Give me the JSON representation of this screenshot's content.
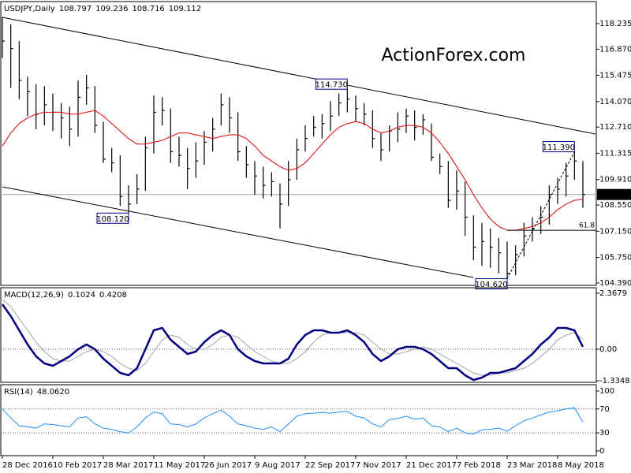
{
  "chart_data": [
    {
      "type": "ohlc",
      "title": "USDJPY,Daily",
      "readout": [
        108.797,
        109.236,
        108.716,
        109.112
      ],
      "watermark": "ActionForex.com",
      "color": "#000000",
      "ylim": [
        104.26,
        119.41
      ],
      "yticks": [
        118.235,
        {
          "value": 116.87,
          "label": "116.870"
        },
        115.475,
        {
          "value": 114.07,
          "label": "114.070"
        },
        {
          "value": 112.71,
          "label": "112.710"
        },
        111.315,
        {
          "value": 109.91,
          "label": "109.910"
        },
        {
          "value": 108.55,
          "label": "108.550"
        },
        {
          "value": 107.15,
          "label": "107.150"
        },
        {
          "value": 105.75,
          "label": "105.750"
        },
        {
          "value": 104.39,
          "label": "104.390"
        }
      ],
      "high": [
        118.6,
        118.2,
        117.3,
        115.4,
        115.0,
        114.9,
        114.5,
        114.0,
        113.8,
        115.2,
        115.5,
        114.9,
        113.0,
        111.6,
        111.2,
        109.6,
        110.2,
        112.2,
        114.4,
        114.3,
        113.7,
        112.2,
        111.6,
        111.9,
        112.5,
        113.2,
        114.5,
        114.3,
        113.5,
        111.7,
        110.9,
        110.6,
        110.3,
        109.7,
        110.9,
        112.1,
        112.8,
        113.3,
        113.4,
        114.1,
        114.5,
        114.73,
        114.4,
        114.0,
        113.6,
        112.4,
        112.8,
        113.5,
        113.7,
        113.6,
        113.4,
        112.9,
        111.3,
        110.9,
        110.4,
        109.8,
        108.0,
        107.6,
        107.3,
        106.8,
        106.6,
        106.4,
        107.6,
        107.9,
        108.5,
        109.6,
        110.0,
        110.8,
        111.39,
        110.9
      ],
      "low": [
        116.4,
        114.8,
        114.2,
        113.3,
        112.6,
        112.8,
        112.5,
        112.1,
        111.7,
        112.2,
        113.9,
        112.4,
        110.8,
        110.3,
        108.5,
        108.12,
        108.6,
        109.3,
        111.3,
        112.8,
        110.8,
        110.6,
        109.4,
        110.0,
        110.7,
        111.4,
        112.8,
        112.4,
        110.9,
        110.0,
        109.1,
        108.9,
        109.0,
        107.3,
        108.5,
        109.9,
        111.4,
        112.2,
        112.1,
        112.5,
        113.3,
        113.5,
        113.0,
        112.8,
        111.6,
        110.9,
        111.4,
        111.9,
        112.4,
        112.0,
        112.3,
        110.9,
        110.2,
        108.4,
        108.3,
        106.9,
        105.6,
        105.3,
        105.2,
        104.9,
        104.62,
        104.8,
        105.8,
        106.6,
        107.0,
        107.5,
        108.6,
        109.0,
        109.9,
        108.4
      ],
      "close": [
        117.3,
        116.9,
        115.2,
        114.6,
        113.4,
        113.9,
        113.5,
        113.2,
        112.6,
        114.3,
        114.8,
        112.8,
        111.0,
        110.8,
        109.0,
        108.6,
        109.4,
        111.6,
        113.5,
        113.6,
        111.4,
        111.2,
        110.5,
        110.9,
        111.9,
        112.6,
        113.9,
        113.2,
        111.4,
        110.7,
        110.1,
        109.6,
        109.8,
        108.6,
        109.9,
        111.5,
        112.1,
        112.7,
        112.9,
        113.3,
        114.0,
        114.2,
        113.7,
        113.4,
        112.1,
        111.5,
        112.5,
        112.6,
        113.3,
        112.7,
        113.1,
        111.1,
        110.6,
        108.8,
        109.3,
        107.9,
        106.3,
        106.6,
        106.3,
        106.0,
        104.9,
        105.9,
        106.9,
        107.3,
        107.9,
        109.1,
        109.4,
        110.1,
        110.9,
        109.112
      ],
      "ma": {
        "color": "#e00000",
        "values": [
          111.7,
          112.4,
          112.9,
          113.2,
          113.4,
          113.5,
          113.5,
          113.5,
          113.4,
          113.4,
          113.5,
          113.6,
          113.3,
          112.9,
          112.5,
          112.1,
          111.8,
          111.8,
          111.9,
          112.0,
          112.2,
          112.4,
          112.4,
          112.3,
          112.2,
          112.1,
          112.2,
          112.3,
          112.3,
          112.1,
          111.7,
          111.2,
          110.9,
          110.6,
          110.4,
          110.5,
          110.8,
          111.3,
          111.8,
          112.3,
          112.7,
          112.9,
          113.0,
          112.9,
          112.6,
          112.4,
          112.5,
          112.7,
          112.8,
          112.8,
          112.7,
          112.4,
          111.9,
          111.3,
          110.6,
          109.9,
          109.1,
          108.4,
          107.8,
          107.4,
          107.2,
          107.2,
          107.3,
          107.4,
          107.6,
          107.9,
          108.3,
          108.6,
          108.8,
          108.85
        ]
      },
      "current_price": 109.112,
      "channel": [
        {
          "from": [
            0,
            118.57
          ],
          "to": [
            70.5,
            112.34
          ]
        },
        {
          "from": [
            0,
            109.52
          ],
          "to": [
            56,
            104.68
          ]
        }
      ],
      "annotations": [
        {
          "index": 41,
          "value": 114.73,
          "label": "114.730"
        },
        {
          "index": 68,
          "value": 111.39,
          "label": "111.390"
        },
        {
          "index": 15,
          "value": 108.12,
          "label": "108.120"
        },
        {
          "index": 60,
          "value": 104.62,
          "label": "104.620"
        }
      ],
      "fibo": {
        "from": [
          60,
          104.62
        ],
        "to": [
          68,
          111.39
        ],
        "level": 107.2,
        "level_label": "61.8"
      }
    },
    {
      "type": "line",
      "title": "MACD(12,26,9)",
      "readout": [
        0.1024,
        0.4208
      ],
      "ylim": [
        -1.4,
        2.6
      ],
      "yticks": [
        2.3679,
        {
          "value": 0,
          "label": "0.00"
        },
        -1.3348
      ],
      "levels": [
        0
      ],
      "series": [
        {
          "color": "#a0a0a0",
          "width": 1,
          "values": [
            2.1,
            1.8,
            1.3,
            0.8,
            0.3,
            -0.1,
            -0.4,
            -0.5,
            -0.5,
            -0.3,
            -0.1,
            0.0,
            -0.1,
            -0.3,
            -0.6,
            -0.8,
            -0.9,
            -0.6,
            -0.1,
            0.4,
            0.6,
            0.5,
            0.2,
            0.0,
            0.0,
            0.2,
            0.5,
            0.6,
            0.5,
            0.2,
            -0.1,
            -0.3,
            -0.5,
            -0.6,
            -0.6,
            -0.4,
            -0.1,
            0.3,
            0.6,
            0.7,
            0.7,
            0.7,
            0.7,
            0.6,
            0.3,
            0.0,
            -0.2,
            -0.2,
            -0.1,
            0.0,
            0.1,
            0.0,
            -0.2,
            -0.4,
            -0.6,
            -0.8,
            -1.0,
            -1.1,
            -1.1,
            -1.0,
            -1.0,
            -0.9,
            -0.8,
            -0.6,
            -0.3,
            0.0,
            0.4,
            0.6,
            0.7,
            0.4208
          ]
        },
        {
          "color": "#000080",
          "width": 2.5,
          "values": [
            1.9,
            1.4,
            0.8,
            0.2,
            -0.3,
            -0.6,
            -0.7,
            -0.5,
            -0.3,
            0.0,
            0.2,
            0.0,
            -0.4,
            -0.7,
            -1.0,
            -1.1,
            -0.8,
            0.0,
            0.8,
            0.9,
            0.4,
            0.1,
            -0.2,
            -0.1,
            0.3,
            0.6,
            0.8,
            0.6,
            0.0,
            -0.3,
            -0.5,
            -0.6,
            -0.6,
            -0.6,
            -0.4,
            0.2,
            0.6,
            0.8,
            0.8,
            0.7,
            0.7,
            0.8,
            0.6,
            0.3,
            -0.2,
            -0.5,
            -0.3,
            0.0,
            0.1,
            0.1,
            0.0,
            -0.2,
            -0.5,
            -0.8,
            -0.8,
            -1.1,
            -1.3,
            -1.2,
            -1.0,
            -1.0,
            -0.9,
            -0.8,
            -0.5,
            -0.2,
            0.2,
            0.5,
            0.9,
            0.9,
            0.8,
            0.1024
          ]
        }
      ]
    },
    {
      "type": "line",
      "title": "RSI(14)",
      "readout": [
        {
          "value": 48.062,
          "label": "48.0620"
        }
      ],
      "ylim": [
        -8,
        110.5
      ],
      "yticks": [
        100,
        70,
        30,
        0
      ],
      "levels": [
        70,
        30
      ],
      "series": [
        {
          "color": "#1e90ff",
          "width": 1,
          "values": [
            70,
            55,
            42,
            40,
            38,
            45,
            44,
            42,
            40,
            55,
            57,
            45,
            38,
            36,
            32,
            30,
            40,
            55,
            65,
            62,
            45,
            44,
            40,
            45,
            55,
            62,
            68,
            58,
            45,
            42,
            38,
            36,
            40,
            32,
            45,
            58,
            62,
            63,
            64,
            63,
            65,
            66,
            58,
            55,
            45,
            40,
            52,
            54,
            58,
            53,
            55,
            42,
            40,
            32,
            38,
            30,
            28,
            35,
            36,
            38,
            33,
            42,
            50,
            55,
            60,
            65,
            67,
            70,
            72,
            48.062
          ]
        }
      ],
      "categories": [
        "28 Dec 2016",
        null,
        null,
        null,
        null,
        null,
        "10 Feb 2017",
        null,
        null,
        null,
        null,
        null,
        "28 Mar 2017",
        null,
        null,
        null,
        null,
        null,
        "11 May 2017",
        null,
        null,
        null,
        null,
        null,
        "26 Jun 2017",
        null,
        null,
        null,
        null,
        null,
        "9 Aug 2017",
        null,
        null,
        null,
        null,
        null,
        "22 Sep 2017",
        null,
        null,
        null,
        null,
        null,
        "7 Nov 2017",
        null,
        null,
        null,
        null,
        null,
        "21 Dec 2017",
        null,
        null,
        null,
        null,
        null,
        "7 Feb 2018",
        null,
        null,
        null,
        null,
        null,
        "23 Mar 2018",
        null,
        null,
        null,
        null,
        null,
        "8 May 2018",
        null,
        null,
        null
      ]
    }
  ]
}
